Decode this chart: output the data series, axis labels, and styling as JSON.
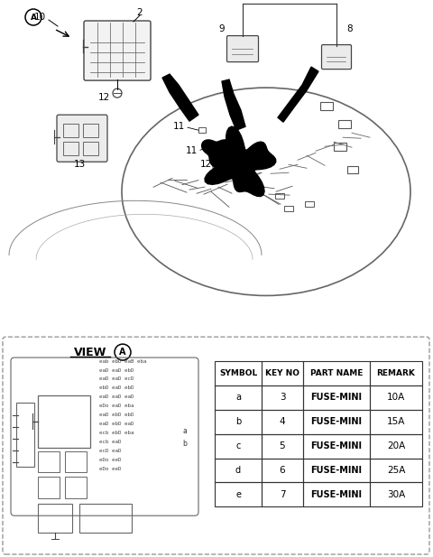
{
  "bg_color": "#ffffff",
  "fig_width": 4.8,
  "fig_height": 6.17,
  "dpi": 100,
  "table_headers": [
    "SYMBOL",
    "KEY NO",
    "PART NAME",
    "REMARK"
  ],
  "table_rows": [
    [
      "a",
      "3",
      "FUSE-MINI",
      "10A"
    ],
    [
      "b",
      "4",
      "FUSE-MINI",
      "15A"
    ],
    [
      "c",
      "5",
      "FUSE-MINI",
      "20A"
    ],
    [
      "d",
      "6",
      "FUSE-MINI",
      "25A"
    ],
    [
      "e",
      "7",
      "FUSE-MINI",
      "30A"
    ]
  ],
  "line_color": "#333333",
  "dash_color": "#999999"
}
